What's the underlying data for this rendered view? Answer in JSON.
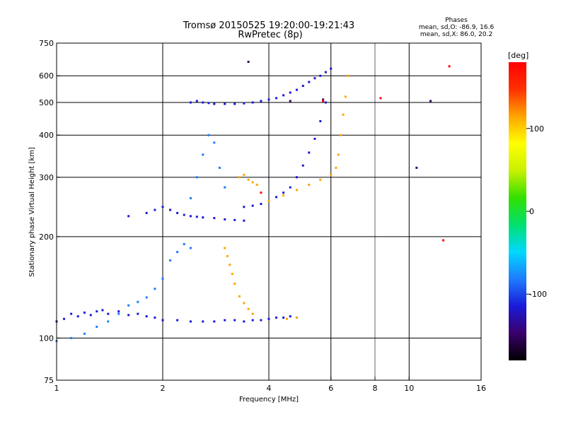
{
  "chart_data": {
    "type": "scatter",
    "title": "Tromsø 20150525 19:20:00-19:21:43",
    "subtitle": "RwPretec (8p)",
    "stats": {
      "heading": "Phases",
      "line1": "mean, sd,O: -86.9, 16.6",
      "line2": "mean, sd,X:  86.0, 20.2"
    },
    "xlabel": "Frequency [MHz]",
    "ylabel": "Stationary phase Virtual Height [km]",
    "x_scale": "log",
    "y_scale": "log",
    "xlim": [
      1,
      16
    ],
    "ylim": [
      75,
      750
    ],
    "x_ticks": [
      1,
      2,
      4,
      6,
      8,
      10,
      16
    ],
    "y_ticks": [
      75,
      100,
      200,
      300,
      400,
      500,
      600,
      750
    ],
    "x_gridlines": [
      2,
      4,
      6,
      10
    ],
    "y_gridlines": [
      100,
      200,
      300,
      400,
      500,
      600
    ],
    "x_minor_gridlines": [
      8
    ],
    "colorbar": {
      "label": "[deg]",
      "range": [
        -180,
        180
      ],
      "ticks": [
        100,
        0,
        -100
      ],
      "colors": [
        "#000000",
        "#3a006a",
        "#1a1ad8",
        "#1e7bff",
        "#00d8ff",
        "#00e070",
        "#33e000",
        "#c8f000",
        "#ffff00",
        "#ffa500",
        "#ff3000",
        "#ff0000"
      ]
    },
    "series": [
      {
        "name": "",
        "phase": -110,
        "x": [
          1.0,
          1.05,
          1.1,
          1.15,
          1.2,
          1.25,
          1.3,
          1.35,
          1.4,
          1.5,
          1.6,
          1.7,
          1.8,
          1.9,
          2.0
        ],
        "y": [
          112,
          114,
          118,
          116,
          119,
          117,
          120,
          121,
          118,
          120,
          117,
          118,
          116,
          115,
          113
        ]
      },
      {
        "name": "",
        "phase": -110,
        "x": [
          2.0,
          2.2,
          2.4,
          2.6,
          2.8,
          3.0,
          3.2,
          3.4,
          3.6,
          3.8,
          4.0,
          4.2,
          4.4,
          4.6,
          4.8
        ],
        "y": [
          113,
          113,
          112,
          112,
          112,
          113,
          113,
          112,
          113,
          113,
          114,
          115,
          115,
          116,
          115
        ]
      },
      {
        "name": "",
        "phase": 120,
        "x": [
          3.0,
          3.05,
          3.1,
          3.15,
          3.2,
          3.3,
          3.4,
          3.5,
          3.6,
          4.5,
          4.8
        ],
        "y": [
          185,
          175,
          165,
          155,
          145,
          133,
          127,
          122,
          118,
          114,
          115
        ]
      },
      {
        "name": "",
        "phase": -80,
        "x": [
          1.0,
          1.1,
          1.2,
          1.3,
          1.4,
          1.5,
          1.6,
          1.7,
          1.8,
          1.9,
          2.0,
          2.1,
          2.2,
          2.3,
          2.4
        ],
        "y": [
          98,
          100,
          103,
          108,
          112,
          118,
          125,
          128,
          132,
          140,
          150,
          170,
          180,
          190,
          185
        ]
      },
      {
        "name": "",
        "phase": -120,
        "x": [
          1.6,
          1.8,
          1.9,
          2.0,
          2.1,
          2.2,
          2.3,
          2.4,
          2.5,
          2.6,
          2.8,
          3.0,
          3.2,
          3.4
        ],
        "y": [
          230,
          235,
          240,
          245,
          240,
          235,
          232,
          230,
          229,
          228,
          227,
          225,
          224,
          223
        ]
      },
      {
        "name": "",
        "phase": -120,
        "x": [
          3.4,
          3.6,
          3.8,
          4.0,
          4.2,
          4.4,
          4.6,
          4.8,
          5.0,
          5.2,
          5.4,
          5.6,
          5.8
        ],
        "y": [
          245,
          247,
          250,
          255,
          262,
          270,
          280,
          300,
          325,
          355,
          390,
          440,
          500
        ]
      },
      {
        "name": "",
        "phase": -100,
        "x": [
          2.4,
          2.5,
          2.6,
          2.7,
          2.8,
          3.0,
          3.2,
          3.4,
          3.6,
          3.8,
          4.0,
          4.2,
          4.4,
          4.6,
          4.8,
          5.0,
          5.2,
          5.4,
          5.6,
          5.8,
          6.0
        ],
        "y": [
          500,
          505,
          500,
          498,
          495,
          495,
          495,
          497,
          500,
          505,
          510,
          515,
          525,
          535,
          545,
          560,
          575,
          590,
          600,
          615,
          630
        ]
      },
      {
        "name": "",
        "phase": -80,
        "x": [
          2.4,
          2.5,
          2.6,
          2.7,
          2.8,
          2.9,
          3.0
        ],
        "y": [
          260,
          300,
          350,
          400,
          380,
          320,
          280
        ]
      },
      {
        "name": "",
        "phase": 120,
        "x": [
          4.0,
          4.4,
          4.8,
          5.2,
          5.6,
          6.0,
          6.2,
          6.3,
          6.4,
          6.5,
          6.6,
          6.7
        ],
        "y": [
          255,
          265,
          275,
          285,
          295,
          305,
          320,
          350,
          400,
          460,
          520,
          600
        ]
      },
      {
        "name": "",
        "phase": 130,
        "x": [
          3.3,
          3.4,
          3.5,
          3.6,
          3.7
        ],
        "y": [
          300,
          305,
          295,
          290,
          285
        ]
      },
      {
        "name": "",
        "phase": -150,
        "x": [
          10.5,
          11.5,
          3.5,
          4.6,
          5.7
        ],
        "y": [
          320,
          505,
          660,
          505,
          510
        ]
      },
      {
        "name": "",
        "phase": 170,
        "x": [
          8.3,
          12.5,
          13.0,
          3.8,
          5.7
        ],
        "y": [
          515,
          195,
          640,
          270,
          505
        ]
      }
    ]
  }
}
